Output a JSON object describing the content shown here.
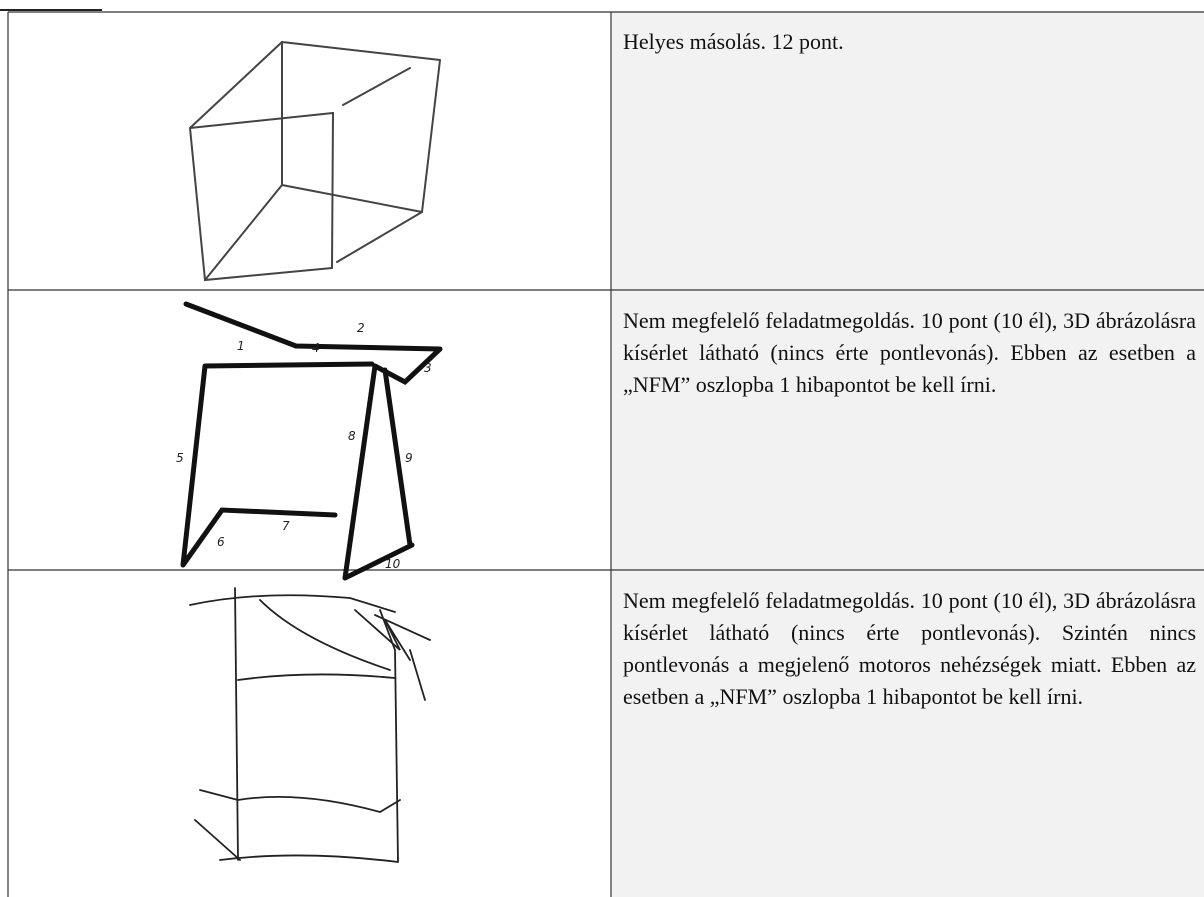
{
  "rows": [
    {
      "text": "Helyes másolás. 12 pont."
    },
    {
      "text": "Nem megfelelő feladatmegoldás. 10 pont (10 él), 3D ábrázolásra kísérlet látható (nincs érte pontlevonás). Ebben az esetben a „NFM” oszlopba 1 hibapontot be kell írni.",
      "drawing_labels": [
        "1",
        "2",
        "3",
        "4",
        "5",
        "6",
        "7",
        "8",
        "9",
        "10"
      ]
    },
    {
      "text": "Nem megfelelő feladatmegoldás. 10 pont (10 él), 3D ábrázolásra kísérlet látható (nincs érte pontlevonás). Szintén nincs pontlevonás a megjelenő motoros nehézségek miatt. Ebben az esetben a „NFM” oszlopba 1 hibapontot be kell írni."
    }
  ]
}
